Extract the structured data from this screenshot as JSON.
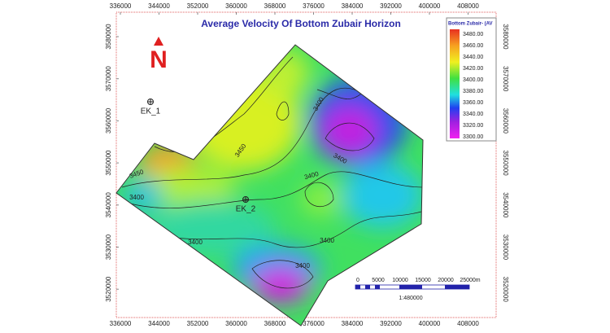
{
  "title": "Average Velocity Of Bottom Zubair Horizon",
  "north_label": "N",
  "x_ticks": [
    336000,
    344000,
    352000,
    360000,
    368000,
    376000,
    384000,
    392000,
    400000,
    408000
  ],
  "y_ticks": [
    3580000,
    3570000,
    3560000,
    3550000,
    3540000,
    3530000,
    3520000
  ],
  "wells": [
    "EK_1",
    "EK_2"
  ],
  "contour_labels": [
    "3450",
    "3450",
    "3400",
    "3400",
    "3400",
    "3400",
    "3400",
    "3400",
    "3400"
  ],
  "legend": {
    "title": "Bottom Zubair- (AV",
    "labels": [
      "3480.00",
      "3460.00",
      "3440.00",
      "3420.00",
      "3400.00",
      "3380.00",
      "3360.00",
      "3340.00",
      "3320.00",
      "3300.00"
    ]
  },
  "scale_bar": {
    "labels": [
      "0",
      "5000",
      "10000",
      "15000",
      "20000",
      "25000m"
    ],
    "ratio": "1:480000"
  }
}
